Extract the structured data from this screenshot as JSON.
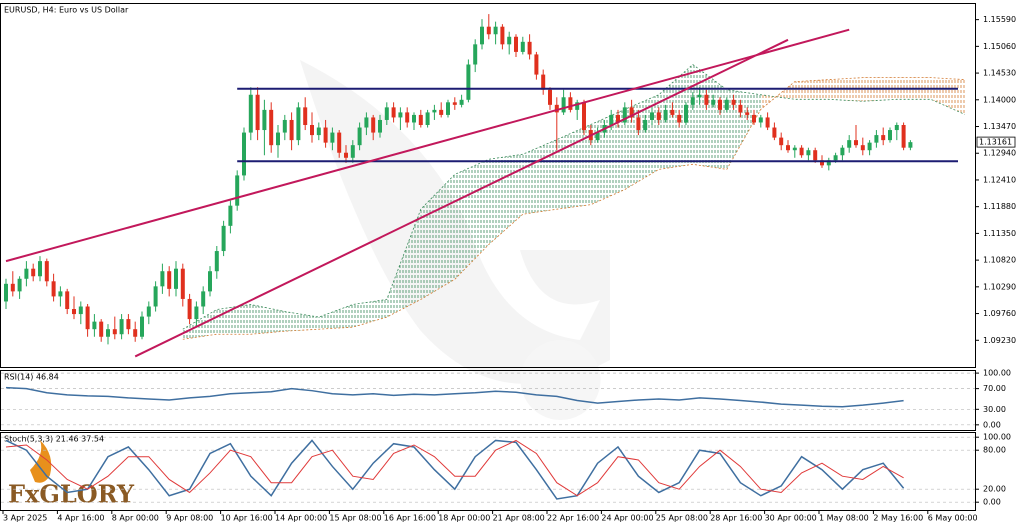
{
  "chart_data": [
    {
      "type": "candlestick",
      "title": "EURUSD, H4:  Euro vs US Dollar",
      "logo": "FxGLORY",
      "up_color": "#26a65b",
      "down_color": "#e0301e",
      "ylim": [
        1.087,
        1.1592
      ],
      "yticks": [
        {
          "value": 1.1559,
          "label": "1.15590"
        },
        {
          "value": 1.1506,
          "label": "1.15060"
        },
        {
          "value": 1.1453,
          "label": "1.14530"
        },
        {
          "value": 1.14,
          "label": "1.14000"
        },
        {
          "value": 1.1347,
          "label": "1.13470"
        },
        {
          "value": 1.1294,
          "label": "1.12940"
        },
        {
          "value": 1.1241,
          "label": "1.12410"
        },
        {
          "value": 1.1188,
          "label": "1.11880"
        },
        {
          "value": 1.1135,
          "label": "1.11350"
        },
        {
          "value": 1.1082,
          "label": "1.10820"
        },
        {
          "value": 1.1029,
          "label": "1.10290"
        },
        {
          "value": 1.0976,
          "label": "1.09760"
        },
        {
          "value": 1.0923,
          "label": "1.09230"
        }
      ],
      "last_price": 1.13161,
      "x_labels": [
        "3 Apr 2025",
        "4 Apr 16:00",
        "8 Apr 00:00",
        "9 Apr 08:00",
        "10 Apr 16:00",
        "14 Apr 00:00",
        "15 Apr 08:00",
        "16 Apr 16:00",
        "18 Apr 00:00",
        "21 Apr 08:00",
        "22 Apr 16:00",
        "24 Apr 00:00",
        "25 Apr 08:00",
        "28 Apr 16:00",
        "30 Apr 00:00",
        "1 May 08:00",
        "2 May 16:00",
        "6 May 00:00"
      ],
      "candles": [
        [
          1.1,
          1.1045,
          1.0985,
          1.1035
        ],
        [
          1.1035,
          1.106,
          1.101,
          1.102
        ],
        [
          1.102,
          1.105,
          1.1005,
          1.1045
        ],
        [
          1.1045,
          1.108,
          1.103,
          1.1065
        ],
        [
          1.1065,
          1.1075,
          1.104,
          1.105
        ],
        [
          1.105,
          1.109,
          1.104,
          1.108
        ],
        [
          1.108,
          1.1085,
          1.103,
          1.104
        ],
        [
          1.104,
          1.1055,
          1.1,
          1.101
        ],
        [
          1.101,
          1.103,
          1.099,
          1.102
        ],
        [
          1.102,
          1.1025,
          1.0975,
          1.0985
        ],
        [
          1.0985,
          1.101,
          1.0965,
          1.0975
        ],
        [
          1.0975,
          1.1,
          1.0955,
          1.099
        ],
        [
          1.099,
          1.0995,
          1.093,
          1.0945
        ],
        [
          1.0945,
          1.0975,
          1.093,
          1.096
        ],
        [
          1.096,
          1.0965,
          1.092,
          1.093
        ],
        [
          1.093,
          1.0955,
          1.0915,
          1.0945
        ],
        [
          1.0945,
          1.097,
          1.0925,
          1.0935
        ],
        [
          1.0935,
          1.0975,
          1.0925,
          1.0965
        ],
        [
          1.0965,
          1.0975,
          1.0935,
          1.0945
        ],
        [
          1.0945,
          1.096,
          1.092,
          1.093
        ],
        [
          1.093,
          1.098,
          1.0925,
          1.097
        ],
        [
          1.097,
          1.1,
          1.0955,
          1.099
        ],
        [
          1.099,
          1.104,
          1.098,
          1.103
        ],
        [
          1.103,
          1.1075,
          1.1015,
          1.106
        ],
        [
          1.106,
          1.107,
          1.101,
          1.1025
        ],
        [
          1.1025,
          1.108,
          1.101,
          1.1065
        ],
        [
          1.1065,
          1.1075,
          1.099,
          1.1005
        ],
        [
          1.1005,
          1.1015,
          1.0955,
          1.0965
        ],
        [
          1.0965,
          1.1,
          1.095,
          1.099
        ],
        [
          1.099,
          1.103,
          1.0975,
          1.102
        ],
        [
          1.102,
          1.107,
          1.101,
          1.106
        ],
        [
          1.106,
          1.111,
          1.1045,
          1.11
        ],
        [
          1.11,
          1.116,
          1.109,
          1.115
        ],
        [
          1.115,
          1.12,
          1.1135,
          1.119
        ],
        [
          1.119,
          1.126,
          1.118,
          1.125
        ],
        [
          1.125,
          1.1345,
          1.124,
          1.1335
        ],
        [
          1.1335,
          1.1425,
          1.132,
          1.141
        ],
        [
          1.141,
          1.1425,
          1.132,
          1.134
        ],
        [
          1.134,
          1.14,
          1.129,
          1.138
        ],
        [
          1.138,
          1.1395,
          1.1295,
          1.131
        ],
        [
          1.131,
          1.135,
          1.1285,
          1.1335
        ],
        [
          1.1335,
          1.137,
          1.132,
          1.136
        ],
        [
          1.136,
          1.1375,
          1.13,
          1.132
        ],
        [
          1.132,
          1.1395,
          1.131,
          1.1385
        ],
        [
          1.1385,
          1.1405,
          1.134,
          1.135
        ],
        [
          1.135,
          1.1375,
          1.1315,
          1.133
        ],
        [
          1.133,
          1.1355,
          1.132,
          1.1345
        ],
        [
          1.1345,
          1.136,
          1.1305,
          1.1315
        ],
        [
          1.1315,
          1.1345,
          1.13,
          1.1335
        ],
        [
          1.1335,
          1.134,
          1.1285,
          1.1295
        ],
        [
          1.1295,
          1.131,
          1.1275,
          1.1285
        ],
        [
          1.1285,
          1.132,
          1.1275,
          1.131
        ],
        [
          1.131,
          1.1355,
          1.13,
          1.1345
        ],
        [
          1.1345,
          1.1375,
          1.133,
          1.1365
        ],
        [
          1.1365,
          1.137,
          1.132,
          1.1335
        ],
        [
          1.1335,
          1.137,
          1.1325,
          1.136
        ],
        [
          1.136,
          1.1395,
          1.135,
          1.1385
        ],
        [
          1.1385,
          1.1395,
          1.1355,
          1.1365
        ],
        [
          1.1365,
          1.1385,
          1.134,
          1.1375
        ],
        [
          1.1375,
          1.1385,
          1.1345,
          1.1355
        ],
        [
          1.1355,
          1.1375,
          1.134,
          1.137
        ],
        [
          1.137,
          1.138,
          1.1345,
          1.135
        ],
        [
          1.135,
          1.138,
          1.1345,
          1.1375
        ],
        [
          1.1375,
          1.139,
          1.136,
          1.138
        ],
        [
          1.138,
          1.1395,
          1.1365,
          1.137
        ],
        [
          1.137,
          1.14,
          1.1365,
          1.1395
        ],
        [
          1.1395,
          1.1405,
          1.138,
          1.139
        ],
        [
          1.139,
          1.141,
          1.1385,
          1.14
        ],
        [
          1.14,
          1.148,
          1.1395,
          1.147
        ],
        [
          1.147,
          1.152,
          1.1455,
          1.151
        ],
        [
          1.151,
          1.156,
          1.15,
          1.1545
        ],
        [
          1.1545,
          1.157,
          1.152,
          1.153
        ],
        [
          1.153,
          1.1555,
          1.151,
          1.1545
        ],
        [
          1.1545,
          1.155,
          1.15,
          1.151
        ],
        [
          1.151,
          1.1535,
          1.149,
          1.1525
        ],
        [
          1.1525,
          1.153,
          1.1485,
          1.1495
        ],
        [
          1.1495,
          1.1525,
          1.149,
          1.1515
        ],
        [
          1.1515,
          1.153,
          1.148,
          1.149
        ],
        [
          1.149,
          1.1495,
          1.144,
          1.145
        ],
        [
          1.145,
          1.146,
          1.141,
          1.142
        ],
        [
          1.142,
          1.1425,
          1.138,
          1.139
        ],
        [
          1.139,
          1.1405,
          1.13,
          1.1375
        ],
        [
          1.1375,
          1.142,
          1.137,
          1.1405
        ],
        [
          1.1405,
          1.1415,
          1.1375,
          1.138
        ],
        [
          1.138,
          1.14,
          1.136,
          1.1395
        ],
        [
          1.1395,
          1.14,
          1.133,
          1.134
        ],
        [
          1.134,
          1.135,
          1.131,
          1.132
        ],
        [
          1.132,
          1.1345,
          1.1315,
          1.1335
        ],
        [
          1.1335,
          1.136,
          1.1325,
          1.135
        ],
        [
          1.135,
          1.138,
          1.134,
          1.137
        ],
        [
          1.137,
          1.138,
          1.1345,
          1.1355
        ],
        [
          1.1355,
          1.1395,
          1.135,
          1.1385
        ],
        [
          1.1385,
          1.14,
          1.1355,
          1.1365
        ],
        [
          1.1365,
          1.138,
          1.133,
          1.134
        ],
        [
          1.134,
          1.137,
          1.1335,
          1.136
        ],
        [
          1.136,
          1.1385,
          1.135,
          1.1375
        ],
        [
          1.1375,
          1.1385,
          1.135,
          1.136
        ],
        [
          1.136,
          1.139,
          1.1355,
          1.138
        ],
        [
          1.138,
          1.1395,
          1.1365,
          1.137
        ],
        [
          1.137,
          1.138,
          1.1345,
          1.1355
        ],
        [
          1.1355,
          1.1395,
          1.135,
          1.139
        ],
        [
          1.139,
          1.1415,
          1.138,
          1.1405
        ],
        [
          1.1405,
          1.1425,
          1.139,
          1.141
        ],
        [
          1.141,
          1.142,
          1.138,
          1.139
        ],
        [
          1.139,
          1.141,
          1.1385,
          1.14
        ],
        [
          1.14,
          1.1405,
          1.137,
          1.138
        ],
        [
          1.138,
          1.1405,
          1.1375,
          1.14
        ],
        [
          1.14,
          1.141,
          1.138,
          1.139
        ],
        [
          1.139,
          1.14,
          1.1365,
          1.1375
        ],
        [
          1.1375,
          1.1385,
          1.136,
          1.137
        ],
        [
          1.137,
          1.138,
          1.135,
          1.1355
        ],
        [
          1.1355,
          1.137,
          1.1345,
          1.1365
        ],
        [
          1.1365,
          1.1375,
          1.134,
          1.1345
        ],
        [
          1.1345,
          1.1355,
          1.132,
          1.1325
        ],
        [
          1.1325,
          1.1335,
          1.13,
          1.131
        ],
        [
          1.131,
          1.132,
          1.1295,
          1.13
        ],
        [
          1.13,
          1.131,
          1.1285,
          1.1305
        ],
        [
          1.1305,
          1.131,
          1.1285,
          1.129
        ],
        [
          1.129,
          1.1305,
          1.128,
          1.13
        ],
        [
          1.13,
          1.1305,
          1.1275,
          1.128
        ],
        [
          1.128,
          1.129,
          1.1265,
          1.127
        ],
        [
          1.127,
          1.1285,
          1.126,
          1.128
        ],
        [
          1.128,
          1.1295,
          1.1275,
          1.129
        ],
        [
          1.129,
          1.131,
          1.128,
          1.1305
        ],
        [
          1.1305,
          1.133,
          1.1295,
          1.132
        ],
        [
          1.132,
          1.135,
          1.1305,
          1.131
        ],
        [
          1.131,
          1.1325,
          1.129,
          1.13
        ],
        [
          1.13,
          1.132,
          1.129,
          1.1315
        ],
        [
          1.1315,
          1.134,
          1.1305,
          1.133
        ],
        [
          1.133,
          1.1345,
          1.131,
          1.132
        ],
        [
          1.132,
          1.1345,
          1.1315,
          1.134
        ],
        [
          1.134,
          1.1355,
          1.132,
          1.135
        ],
        [
          1.135,
          1.1355,
          1.13,
          1.1305
        ],
        [
          1.1305,
          1.132,
          1.13,
          1.1316
        ]
      ],
      "cloud": {
        "x": [
          26,
          31,
          36,
          41,
          46,
          51,
          56,
          61,
          66,
          71,
          76,
          81,
          86,
          91,
          96,
          101,
          106,
          111,
          116,
          121,
          126,
          131,
          136,
          141
        ],
        "span_a": [
          1.0945,
          1.0984,
          1.0994,
          1.098,
          1.0969,
          1.0994,
          1.1004,
          1.1183,
          1.1252,
          1.1282,
          1.1292,
          1.1321,
          1.1351,
          1.1381,
          1.141,
          1.147,
          1.142,
          1.141,
          1.1401,
          1.1401,
          1.1397,
          1.1401,
          1.1401,
          1.1371
        ],
        "span_b": [
          1.0925,
          1.0935,
          1.0935,
          1.0941,
          1.0945,
          1.0949,
          1.0969,
          1.1004,
          1.1044,
          1.1113,
          1.1173,
          1.1183,
          1.1192,
          1.1222,
          1.1262,
          1.1272,
          1.1262,
          1.1381,
          1.1436,
          1.144,
          1.1444,
          1.1444,
          1.1444,
          1.144
        ],
        "up_color": "#3a8a5a",
        "down_color": "#d2782e"
      },
      "lines": [
        {
          "i1": 34,
          "i2": 140,
          "y1": 1.1422,
          "y2": 1.1422,
          "color": "#1c1c72"
        },
        {
          "i1": 34,
          "i2": 140,
          "y1": 1.1278,
          "y2": 1.1278,
          "color": "#1c1c72"
        },
        {
          "i1": 0,
          "i2": 124,
          "y1": 1.108,
          "y2": 1.1539,
          "color": "#c2185b"
        },
        {
          "i1": 19,
          "i2": 115,
          "y1": 1.0891,
          "y2": 1.1519,
          "color": "#c2185b"
        }
      ]
    },
    {
      "type": "line",
      "title": "RSI(14) 46.84",
      "ylim": [
        -10,
        106
      ],
      "yticks": [
        {
          "value": 100,
          "label": "100.00"
        },
        {
          "value": 70,
          "label": "70.00"
        },
        {
          "value": 30,
          "label": "30.00"
        },
        {
          "value": 0,
          "label": "0.00"
        }
      ],
      "series": [
        {
          "color": "#3f6fa0",
          "values": [
            72,
            70,
            62,
            58,
            56,
            55,
            52,
            50,
            48,
            52,
            55,
            60,
            62,
            64,
            70,
            66,
            60,
            58,
            60,
            57,
            59,
            58,
            60,
            62,
            65,
            63,
            58,
            55,
            47,
            42,
            45,
            48,
            50,
            48,
            52,
            50,
            47,
            44,
            40,
            38,
            36,
            35,
            38,
            42,
            46.84
          ]
        }
      ]
    },
    {
      "type": "line",
      "title": "Stoch(5,3,3) 21.46 37.54",
      "ylim": [
        -12,
        108
      ],
      "yticks": [
        {
          "value": 100,
          "label": "100.00"
        },
        {
          "value": 80,
          "label": "80.00"
        },
        {
          "value": 20,
          "label": "20.00"
        },
        {
          "value": 0,
          "label": "0.00"
        }
      ],
      "series": [
        {
          "color": "#3f6fa0",
          "values": [
            95,
            80,
            40,
            15,
            20,
            70,
            85,
            50,
            10,
            20,
            75,
            90,
            40,
            10,
            60,
            95,
            55,
            20,
            60,
            90,
            85,
            50,
            20,
            70,
            95,
            92,
            50,
            5,
            10,
            60,
            85,
            40,
            15,
            30,
            80,
            75,
            30,
            10,
            25,
            70,
            50,
            20,
            50,
            60,
            21.46
          ]
        },
        {
          "color": "#e03a3a",
          "values": [
            85,
            88,
            65,
            35,
            20,
            40,
            70,
            70,
            35,
            15,
            45,
            80,
            70,
            30,
            30,
            70,
            80,
            40,
            35,
            75,
            88,
            70,
            40,
            40,
            80,
            95,
            75,
            30,
            10,
            30,
            70,
            65,
            30,
            20,
            55,
            80,
            55,
            20,
            15,
            45,
            60,
            40,
            35,
            55,
            37.54
          ]
        }
      ]
    }
  ]
}
